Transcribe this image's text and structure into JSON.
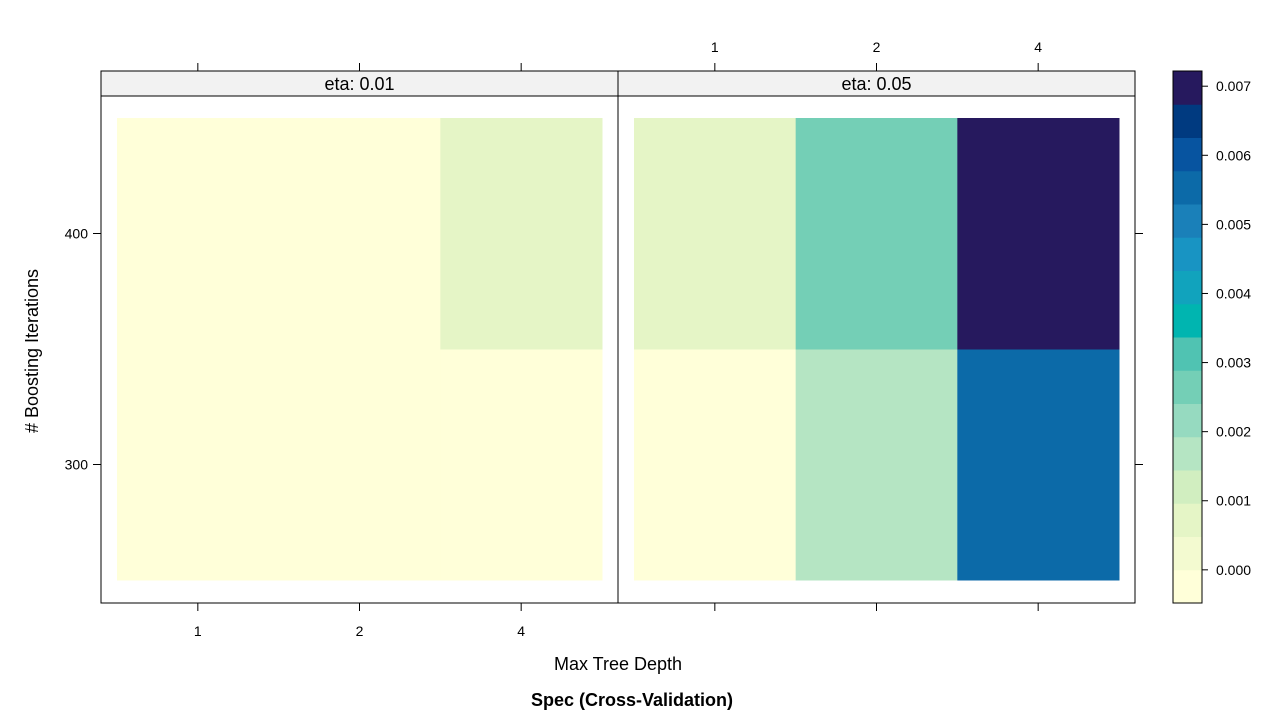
{
  "chart_data": {
    "type": "heatmap",
    "title": "Spec (Cross-Validation)",
    "xlabel": "Max Tree Depth",
    "ylabel": "# Boosting Iterations",
    "x_categories": [
      "1",
      "2",
      "4"
    ],
    "y_categories": [
      "300",
      "400"
    ],
    "y_ticks": [
      "300",
      "400"
    ],
    "panels": [
      {
        "label": "eta: 0.01",
        "cells": [
          {
            "x": "1",
            "y": "300",
            "value": 0.0
          },
          {
            "x": "2",
            "y": "300",
            "value": 0.0
          },
          {
            "x": "4",
            "y": "300",
            "value": 0.0
          },
          {
            "x": "1",
            "y": "400",
            "value": 0.0
          },
          {
            "x": "2",
            "y": "400",
            "value": 0.0
          },
          {
            "x": "4",
            "y": "400",
            "value": 0.0005
          }
        ]
      },
      {
        "label": "eta: 0.05",
        "cells": [
          {
            "x": "1",
            "y": "300",
            "value": 0.0
          },
          {
            "x": "2",
            "y": "300",
            "value": 0.0017
          },
          {
            "x": "4",
            "y": "300",
            "value": 0.0055
          },
          {
            "x": "1",
            "y": "400",
            "value": 0.0005
          },
          {
            "x": "2",
            "y": "400",
            "value": 0.0027
          },
          {
            "x": "4",
            "y": "400",
            "value": 0.0072
          }
        ]
      }
    ],
    "colorbar": {
      "ticks": [
        "0.000",
        "0.001",
        "0.002",
        "0.003",
        "0.004",
        "0.005",
        "0.006",
        "0.007"
      ],
      "range": [
        -0.00048,
        0.00722
      ],
      "colors": [
        "#ffffd9",
        "#f3fad0",
        "#e5f5c6",
        "#d1eec0",
        "#b5e5c3",
        "#96dac0",
        "#74cfb6",
        "#50c3b2",
        "#00b5b0",
        "#11a3bd",
        "#1894c3",
        "#1a80b9",
        "#0c6aa8",
        "#0754a0",
        "#003a80",
        "#26195e"
      ]
    },
    "grid": false,
    "legend": "right"
  }
}
